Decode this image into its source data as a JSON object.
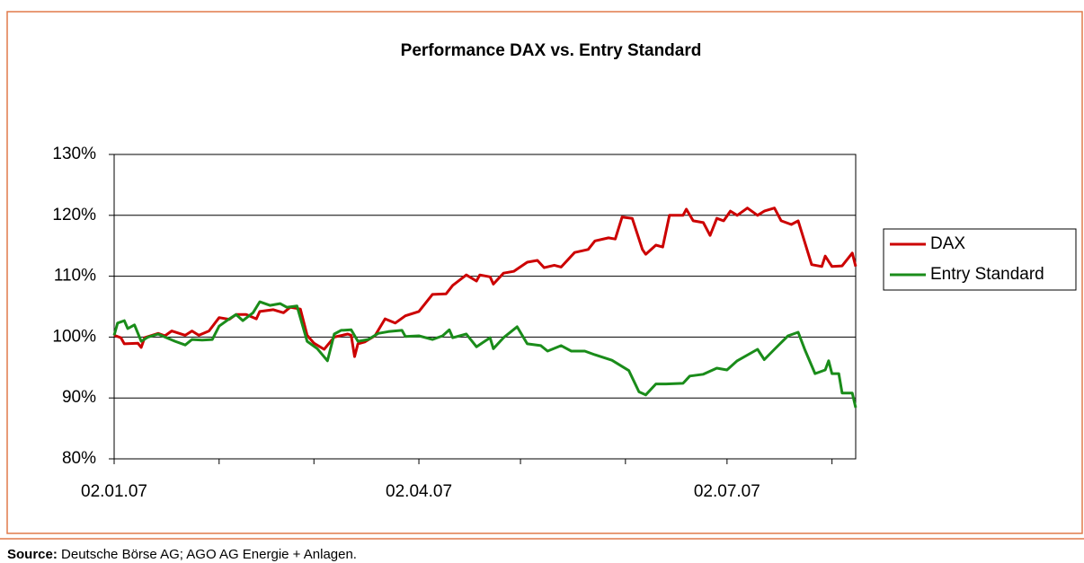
{
  "chart_data": {
    "type": "line",
    "title": "Performance  DAX vs. Entry Standard",
    "xlim": [
      "02.01.07",
      "09.08.07"
    ],
    "xticks": [
      "02.01.07",
      "02.04.07",
      "02.07.07"
    ],
    "xticks_minor": [
      "02.02.07",
      "02.03.07",
      "02.05.07",
      "02.06.07",
      "02.08.07"
    ],
    "ylim": [
      80,
      130
    ],
    "yticks": [
      {
        "value": 80,
        "label": "80%"
      },
      {
        "value": 90,
        "label": "90%"
      },
      {
        "value": 100,
        "label": "100%"
      },
      {
        "value": 110,
        "label": "110%"
      },
      {
        "value": 120,
        "label": "120%"
      },
      {
        "value": 130,
        "label": "130%"
      }
    ],
    "grid": true,
    "legend": "right",
    "series": [
      {
        "name": "DAX",
        "color": "#cc0000",
        "x": [
          "02.01.07",
          "04.01.07",
          "05.01.07",
          "09.01.07",
          "10.01.07",
          "11.01.07",
          "15.01.07",
          "17.01.07",
          "19.01.07",
          "23.01.07",
          "25.01.07",
          "27.01.07",
          "30.01.07",
          "02.02.07",
          "05.02.07",
          "07.02.07",
          "10.02.07",
          "13.02.07",
          "14.02.07",
          "18.02.07",
          "21.02.07",
          "23.02.07",
          "26.02.07",
          "28.02.07",
          "02.03.07",
          "05.03.07",
          "08.03.07",
          "12.03.07",
          "13.03.07",
          "14.03.07",
          "15.03.07",
          "17.03.07",
          "20.03.07",
          "23.03.07",
          "26.03.07",
          "29.03.07",
          "02.04.07",
          "06.04.07",
          "10.04.07",
          "12.04.07",
          "16.04.07",
          "19.04.07",
          "20.04.07",
          "23.04.07",
          "24.04.07",
          "27.04.07",
          "30.04.07",
          "04.05.07",
          "07.05.07",
          "09.05.07",
          "12.05.07",
          "14.05.07",
          "18.05.07",
          "22.05.07",
          "24.05.07",
          "28.05.07",
          "30.05.07",
          "01.06.07",
          "04.06.07",
          "07.06.07",
          "08.06.07",
          "11.06.07",
          "13.06.07",
          "15.06.07",
          "19.06.07",
          "20.06.07",
          "22.06.07",
          "25.06.07",
          "27.06.07",
          "29.06.07",
          "01.07.07",
          "03.07.07",
          "05.07.07",
          "08.07.07",
          "11.07.07",
          "13.07.07",
          "16.07.07",
          "18.07.07",
          "21.07.07",
          "23.07.07",
          "27.07.07",
          "30.07.07",
          "31.07.07",
          "02.08.07",
          "05.08.07",
          "08.08.07",
          "09.08.07"
        ],
        "values": [
          100.3,
          99.9,
          98.9,
          99,
          98.3,
          99.9,
          100.6,
          100.2,
          101,
          100.3,
          101,
          100.3,
          101,
          103.2,
          102.9,
          103.7,
          103.7,
          103,
          104.2,
          104.5,
          104,
          104.9,
          104.6,
          100.3,
          99,
          98,
          100,
          100.5,
          100.3,
          96.8,
          98.9,
          99.2,
          100.2,
          103,
          102.3,
          103.5,
          104.2,
          107,
          107.1,
          108.5,
          110.2,
          109.2,
          110.2,
          109.9,
          108.7,
          110.5,
          110.8,
          112.3,
          112.6,
          111.4,
          111.8,
          111.5,
          113.9,
          114.4,
          115.8,
          116.3,
          116.1,
          119.7,
          119.5,
          114.4,
          113.6,
          115.1,
          114.8,
          120,
          120,
          121,
          119.1,
          118.8,
          116.7,
          119.5,
          119.1,
          120.7,
          120,
          121.2,
          120,
          120.7,
          121.2,
          119.1,
          118.5,
          119.1,
          111.9,
          111.6,
          113.3,
          111.6,
          111.7,
          113.8,
          111.6
        ]
      },
      {
        "name": "Entry Standard",
        "color": "#1a8c1a",
        "x": [
          "02.01.07",
          "03.01.07",
          "05.01.07",
          "06.01.07",
          "08.01.07",
          "10.01.07",
          "12.01.07",
          "15.01.07",
          "17.01.07",
          "20.01.07",
          "23.01.07",
          "25.01.07",
          "28.01.07",
          "31.01.07",
          "02.02.07",
          "05.02.07",
          "07.02.07",
          "09.02.07",
          "12.02.07",
          "14.02.07",
          "17.02.07",
          "20.02.07",
          "22.02.07",
          "25.02.07",
          "28.02.07",
          "03.03.07",
          "06.03.07",
          "08.03.07",
          "10.03.07",
          "13.03.07",
          "15.03.07",
          "18.03.07",
          "21.03.07",
          "24.03.07",
          "28.03.07",
          "29.03.07",
          "02.04.07",
          "06.04.07",
          "09.04.07",
          "11.04.07",
          "12.04.07",
          "16.04.07",
          "19.04.07",
          "23.04.07",
          "24.04.07",
          "27.04.07",
          "01.05.07",
          "04.05.07",
          "08.05.07",
          "10.05.07",
          "14.05.07",
          "17.05.07",
          "21.05.07",
          "24.05.07",
          "29.05.07",
          "03.06.07",
          "06.06.07",
          "08.06.07",
          "11.06.07",
          "14.06.07",
          "19.06.07",
          "21.06.07",
          "25.06.07",
          "29.06.07",
          "02.07.07",
          "05.07.07",
          "11.07.07",
          "13.07.07",
          "16.07.07",
          "20.07.07",
          "23.07.07",
          "25.07.07",
          "28.07.07",
          "31.07.07",
          "01.08.07",
          "02.08.07",
          "04.08.07",
          "05.08.07",
          "08.08.07",
          "09.08.07"
        ],
        "values": [
          100.3,
          102.3,
          102.7,
          101.4,
          102,
          99.3,
          100,
          100.5,
          100,
          99.3,
          98.7,
          99.6,
          99.5,
          99.6,
          101.8,
          103,
          103.7,
          102.7,
          104,
          105.8,
          105.2,
          105.5,
          104.9,
          105.1,
          99.3,
          98.1,
          96.1,
          100.5,
          101.1,
          101.2,
          99.3,
          99.6,
          100.6,
          100.9,
          101.1,
          100.1,
          100.2,
          99.6,
          100.2,
          101.2,
          99.9,
          100.5,
          98.4,
          99.9,
          98.1,
          99.9,
          101.7,
          98.9,
          98.6,
          97.7,
          98.6,
          97.7,
          97.7,
          97.1,
          96.2,
          94.5,
          91,
          90.5,
          92.3,
          92.3,
          92.4,
          93.6,
          93.9,
          94.9,
          94.6,
          96.1,
          98,
          96.3,
          98,
          100.2,
          100.8,
          97.9,
          94,
          94.6,
          96.1,
          94,
          94,
          90.8,
          90.8,
          88.4
        ]
      }
    ]
  },
  "footer": {
    "source_label": "Source:",
    "source_text": "Deutsche Börse AG; AGO AG Energie + Anlagen."
  }
}
